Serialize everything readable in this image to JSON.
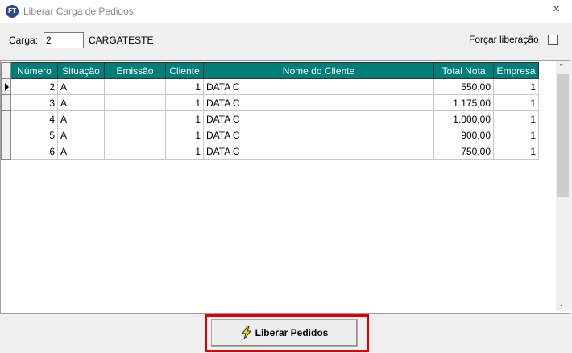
{
  "window": {
    "title": "Liberar Carga de Pedidos",
    "logo": "FT",
    "close_icon": "×"
  },
  "form": {
    "carga_label": "Carga:",
    "carga_value": "2",
    "carga_name": "CARGATESTE",
    "forcar_label": "Forçar liberação",
    "forcar_checked": false
  },
  "grid": {
    "columns": [
      "Número",
      "Situação",
      "Emissão",
      "Cliente",
      "Nome do Cliente",
      "Total Nota",
      "Empresa"
    ],
    "rows": [
      [
        "2",
        "A",
        "",
        "1",
        "DATA C",
        "550,00",
        "1"
      ],
      [
        "3",
        "A",
        "",
        "1",
        "DATA C",
        "1.175,00",
        "1"
      ],
      [
        "4",
        "A",
        "",
        "1",
        "DATA C",
        "1.000,00",
        "1"
      ],
      [
        "5",
        "A",
        "",
        "1",
        "DATA C",
        "900,00",
        "1"
      ],
      [
        "6",
        "A",
        "",
        "1",
        "DATA C",
        "750,00",
        "1"
      ]
    ],
    "current_row": 0,
    "header_color": "#007e7a"
  },
  "footer": {
    "button_label": "Liberar Pedidos",
    "button_icon": "lightning-icon",
    "highlight_color": "#e00000"
  }
}
